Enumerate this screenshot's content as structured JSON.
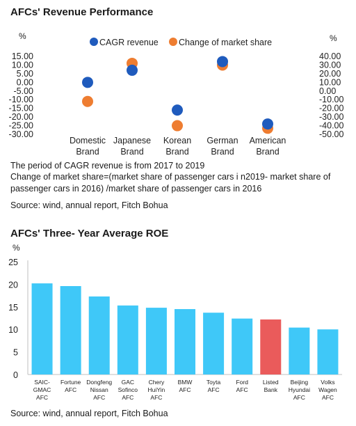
{
  "chart_data": [
    {
      "type": "scatter",
      "title": "AFCs' Revenue Performance",
      "y_unit_left": "%",
      "y_unit_right": "%",
      "categories": [
        "Domestic Brand",
        "Japanese Brand",
        "Korean Brand",
        "German Brand",
        "American Brand"
      ],
      "series": [
        {
          "name": "CAGR revenue",
          "axis": "left",
          "color": "#1f5bbd",
          "values": [
            0.0,
            7.0,
            -16.0,
            12.0,
            -24.0
          ]
        },
        {
          "name": "Change of market share",
          "axis": "right",
          "color": "#ee7d31",
          "values": [
            -12.0,
            32.0,
            -40.0,
            30.0,
            -43.0
          ]
        }
      ],
      "left_ylim": [
        -30,
        15
      ],
      "left_ticks": [
        "15.00",
        "10.00",
        "5.00",
        "0.00",
        "-5.00",
        "-10.00",
        "-15.00",
        "-20.00",
        "-25.00",
        "-30.00"
      ],
      "right_ylim": [
        -50,
        40
      ],
      "right_ticks": [
        "40.00",
        "30.00",
        "20.00",
        "10.00",
        "0.00",
        "-10.00",
        "-20.00",
        "-30.00",
        "-40.00",
        "-50.00"
      ],
      "legend_position": "top",
      "grid": false
    },
    {
      "type": "bar",
      "title": "AFCs' Three- Year Average ROE",
      "y_unit": "%",
      "categories": [
        [
          "SAIC-",
          "GMAC",
          "AFC"
        ],
        [
          "Fortune",
          "AFC"
        ],
        [
          "Dongfeng",
          "Nissan",
          "AFC"
        ],
        [
          "GAC",
          "Sofinco",
          "AFC"
        ],
        [
          "Chery",
          "HuiYin",
          "AFC"
        ],
        [
          "BMW",
          "AFC"
        ],
        [
          "Toyta",
          "AFC"
        ],
        [
          "Ford",
          "AFC"
        ],
        [
          "Listed",
          "Bank"
        ],
        [
          "Beijing",
          "Hyundai",
          "AFC"
        ],
        [
          "Volks",
          "Wagen",
          "AFC"
        ]
      ],
      "values": [
        20.2,
        19.6,
        17.3,
        15.3,
        14.8,
        14.5,
        13.7,
        12.4,
        12.2,
        10.4,
        10.0
      ],
      "bar_color": "#3fc8f8",
      "highlight_color": "#ea5b5b",
      "highlight_index": 8,
      "ylim": [
        0,
        25
      ],
      "y_ticks": [
        "25",
        "20",
        "15",
        "10",
        "5",
        "0"
      ],
      "grid": false
    }
  ],
  "notes": {
    "cagr_period": "The period of CAGR revenue is from 2017 to 2019",
    "market_share_def": "Change of market share=(market share of passenger cars i n2019- market share of passenger cars in 2016) /market share of passenger cars in 2016",
    "source1": "Source: wind, annual report, Fitch Bohua",
    "source2": "Source: wind, annual report, Fitch Bohua"
  }
}
